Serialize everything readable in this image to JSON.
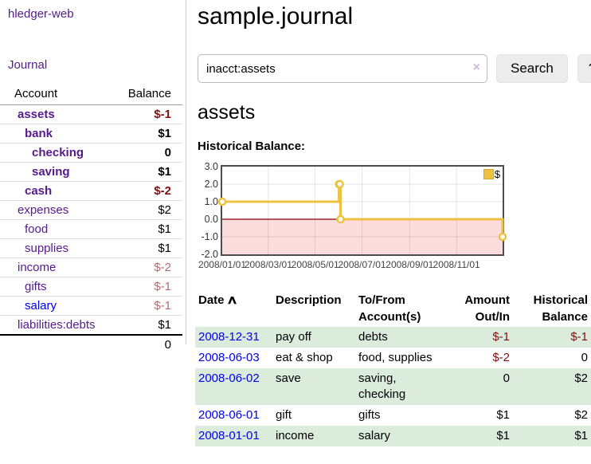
{
  "app": {
    "brand": "hledger-web",
    "nav_journal": "Journal"
  },
  "colors": {
    "link_purple": "#551a8b",
    "link_blue": "#0000ee",
    "negative_strong": "#7f1010",
    "negative_soft": "#b36b6b",
    "row_green": "#dcecdc",
    "series_yellow": "#edc240",
    "negative_region_pink": "#fcdcdc",
    "zero_line_red": "#8b0000"
  },
  "sidebar": {
    "header": {
      "account": "Account",
      "balance": "Balance"
    },
    "rows": [
      {
        "account": "assets",
        "balance": "$-1",
        "depth": 1,
        "bold": true,
        "neg": "strong"
      },
      {
        "account": "bank",
        "balance": "$1",
        "depth": 2,
        "bold": true,
        "neg": ""
      },
      {
        "account": "checking",
        "balance": "0",
        "depth": 3,
        "bold": true,
        "neg": ""
      },
      {
        "account": "saving",
        "balance": "$1",
        "depth": 3,
        "bold": true,
        "neg": ""
      },
      {
        "account": "cash",
        "balance": "$-2",
        "depth": 2,
        "bold": true,
        "neg": "strong"
      },
      {
        "account": "expenses",
        "balance": "$2",
        "depth": 1,
        "bold": false,
        "neg": ""
      },
      {
        "account": "food",
        "balance": "$1",
        "depth": 2,
        "bold": false,
        "neg": ""
      },
      {
        "account": "supplies",
        "balance": "$1",
        "depth": 2,
        "bold": false,
        "neg": ""
      },
      {
        "account": "income",
        "balance": "$-2",
        "depth": 1,
        "bold": false,
        "neg": "soft"
      },
      {
        "account": "gifts",
        "balance": "$-1",
        "depth": 2,
        "bold": false,
        "neg": "soft"
      },
      {
        "account": "salary",
        "balance": "$-1",
        "depth": 2,
        "bold": false,
        "neg": "soft",
        "link": "blue"
      },
      {
        "account": "liabilities:debts",
        "balance": "$1",
        "depth": 1,
        "bold": false,
        "neg": ""
      }
    ],
    "total": "0"
  },
  "header": {
    "title": "sample.journal"
  },
  "search": {
    "value": "inacct:assets",
    "clear_icon": "×",
    "button": "Search",
    "help_button": "?"
  },
  "account_page": {
    "title": "assets"
  },
  "chart_data": {
    "type": "line",
    "step": true,
    "title": "Historical Balance:",
    "series": [
      {
        "name": "$",
        "color": "#edc240",
        "points": [
          [
            "2008-01-01",
            1
          ],
          [
            "2008-06-01",
            2
          ],
          [
            "2008-06-02",
            2
          ],
          [
            "2008-06-03",
            0
          ],
          [
            "2008-12-31",
            -1
          ]
        ]
      }
    ],
    "xlim": [
      "2008-01-01",
      "2008-12-31"
    ],
    "ylim": [
      -2,
      3
    ],
    "x_ticks": [
      "2008/01/01",
      "2008/03/01",
      "2008/05/01",
      "2008/07/01",
      "2008/09/01",
      "2008/11/01"
    ],
    "y_ticks": [
      3,
      2,
      1,
      0,
      -1,
      -2
    ],
    "grid": true,
    "legend_position": "top-right",
    "negative_region_color": "#fcdcdc",
    "zero_line_color": "#8b0000"
  },
  "register": {
    "columns": [
      {
        "label": "Date",
        "sort_icon": "∧"
      },
      {
        "label": "Description"
      },
      {
        "label": "To/From Account(s)"
      },
      {
        "label": "Amount Out/In"
      },
      {
        "label": "Historical Balance"
      }
    ],
    "rows": [
      {
        "date": "2008-12-31",
        "description": "pay off",
        "accounts": "debts",
        "amount": "$-1",
        "balance": "$-1",
        "amount_negative": true,
        "balance_negative": true
      },
      {
        "date": "2008-06-03",
        "description": "eat & shop",
        "accounts": "food, supplies",
        "amount": "$-2",
        "balance": "0",
        "amount_negative": true,
        "balance_negative": false
      },
      {
        "date": "2008-06-02",
        "description": "save",
        "accounts": "saving, checking",
        "amount": "0",
        "balance": "$2",
        "amount_negative": false,
        "balance_negative": false
      },
      {
        "date": "2008-06-01",
        "description": "gift",
        "accounts": "gifts",
        "amount": "$1",
        "balance": "$2",
        "amount_negative": false,
        "balance_negative": false
      },
      {
        "date": "2008-01-01",
        "description": "income",
        "accounts": "salary",
        "amount": "$1",
        "balance": "$1",
        "amount_negative": false,
        "balance_negative": false
      }
    ]
  }
}
